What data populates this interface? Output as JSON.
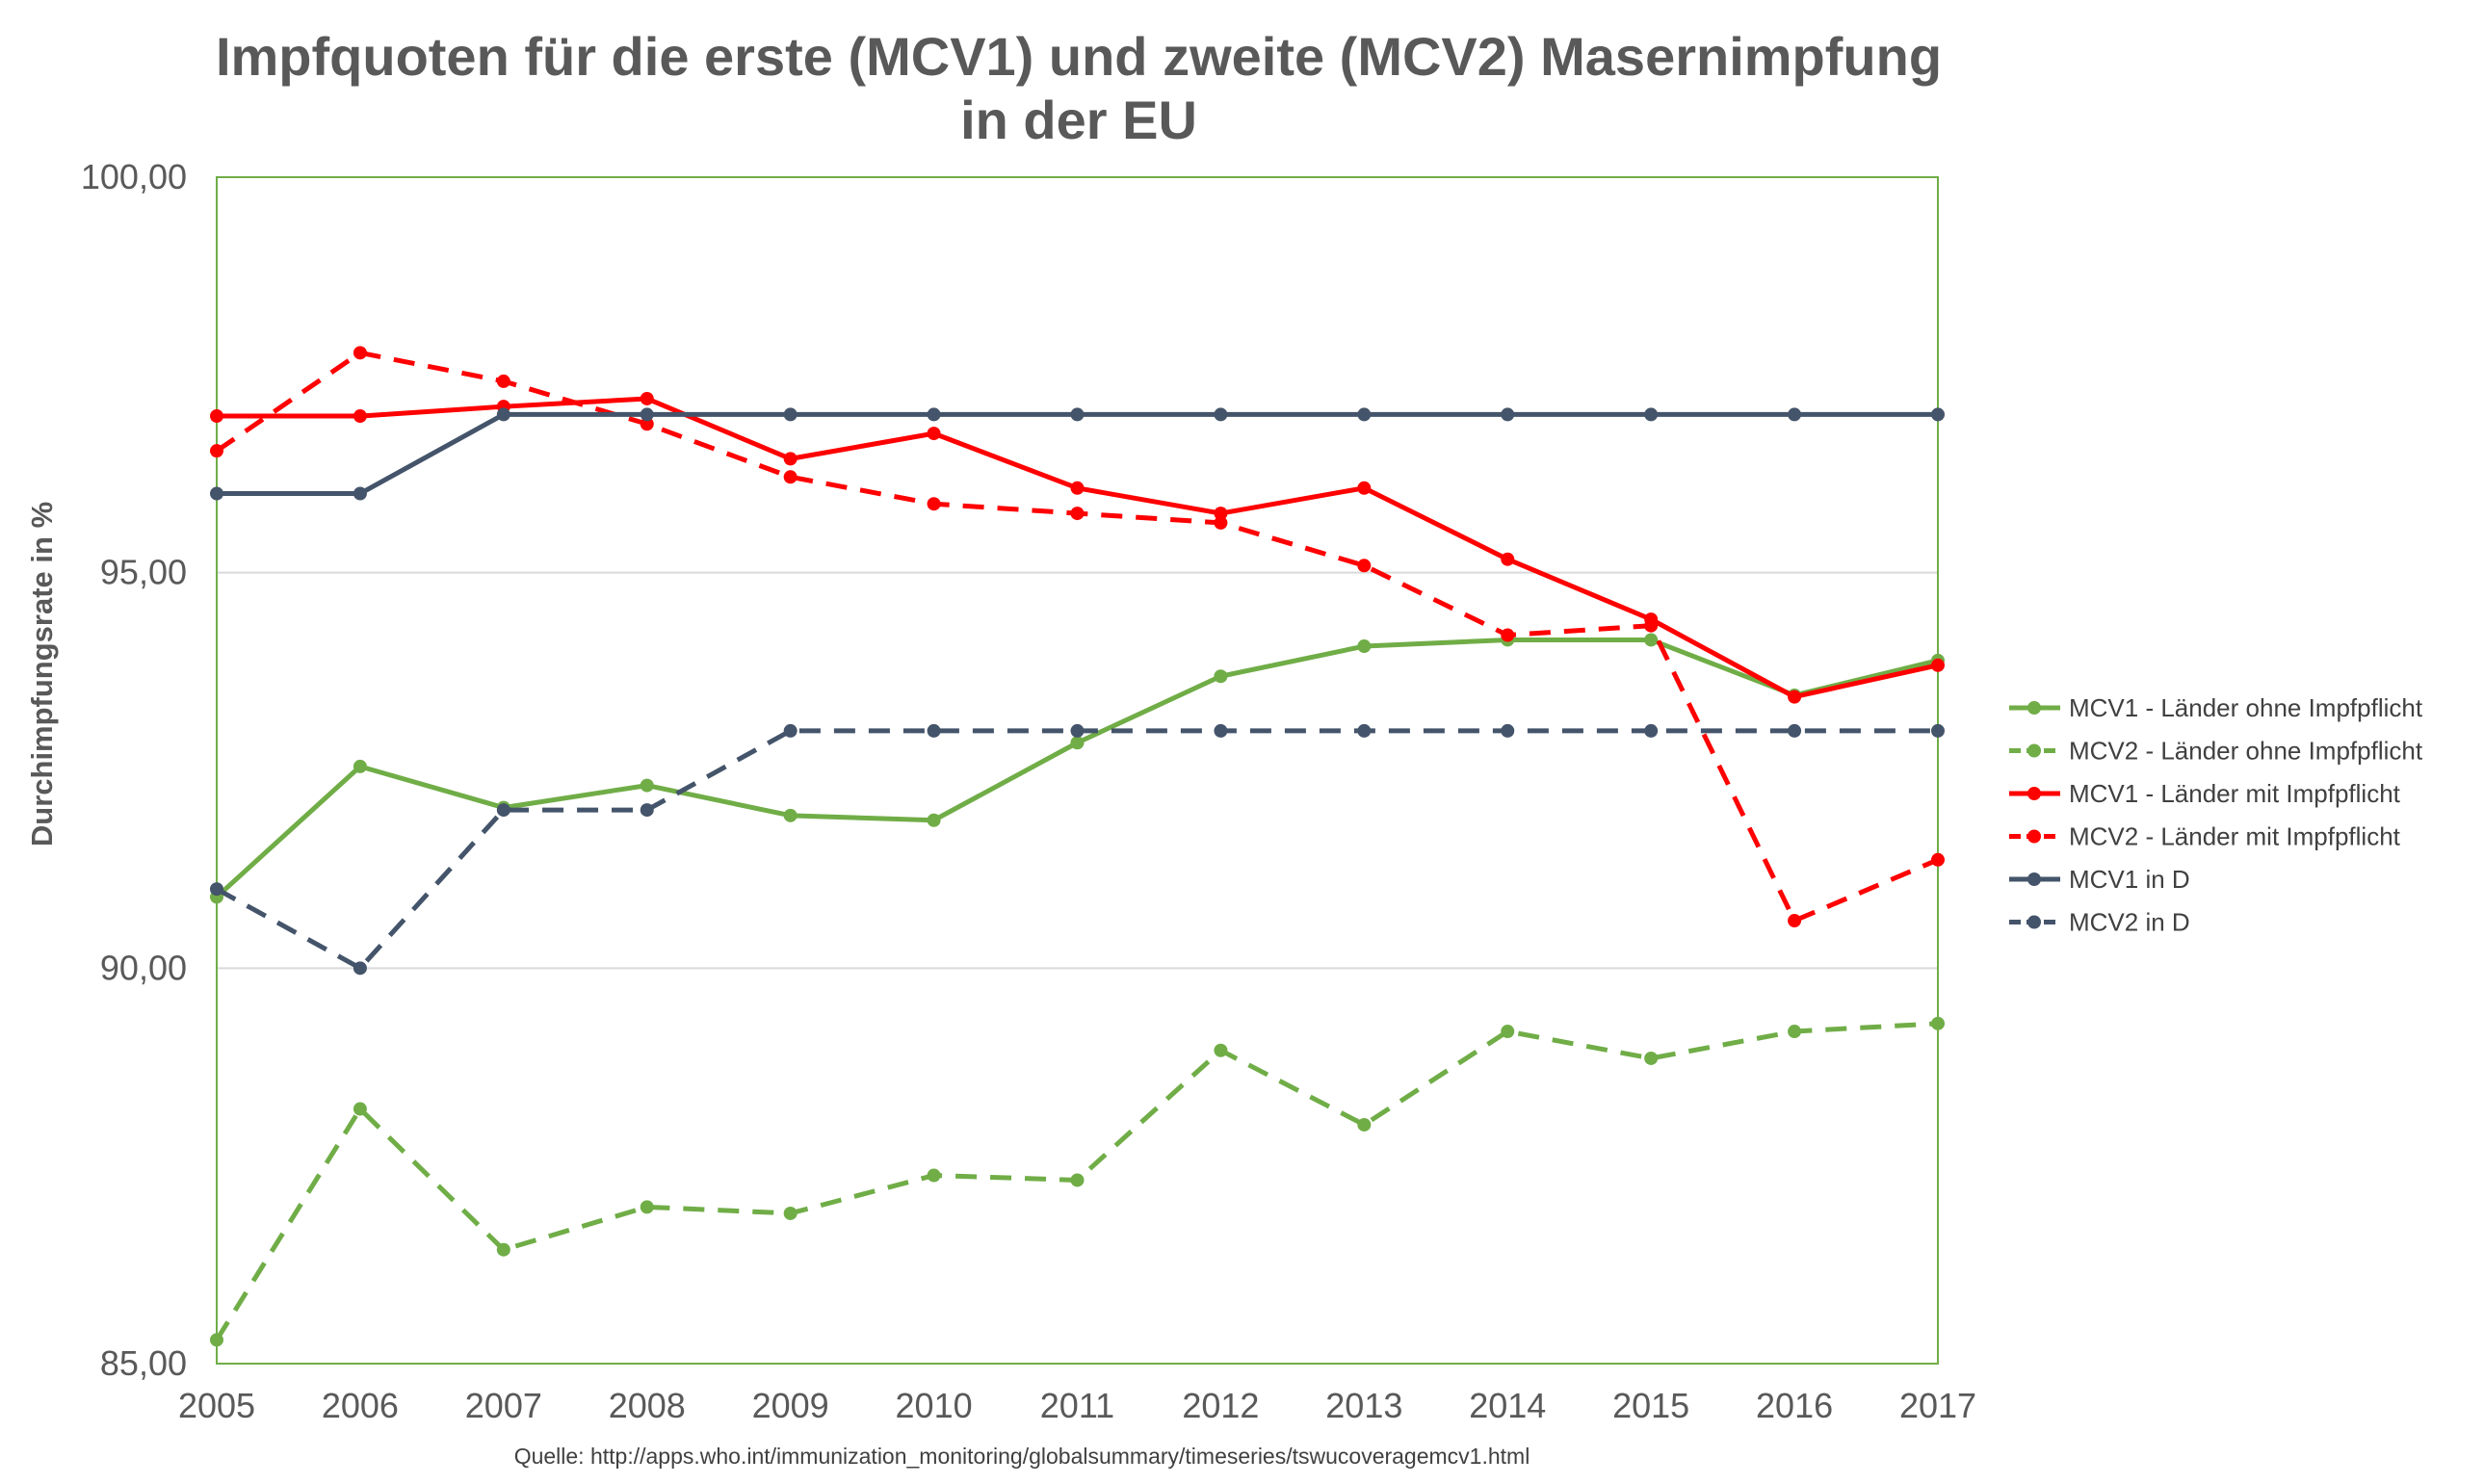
{
  "chart_data": {
    "type": "line",
    "title": [
      "Impfquoten für die erste (MCV1) und zweite (MCV2) Masernimpfung",
      "in der EU"
    ],
    "xlabel": "",
    "ylabel": "Durchimpfungsrate in %",
    "ylim": [
      85,
      100
    ],
    "yticks": [
      85,
      90,
      95,
      100
    ],
    "ytick_labels": [
      "85,00",
      "90,00",
      "95,00",
      "100,00"
    ],
    "x": [
      2005,
      2006,
      2007,
      2008,
      2009,
      2010,
      2011,
      2012,
      2013,
      2014,
      2015,
      2016,
      2017
    ],
    "xtick_labels": [
      "2005",
      "2006",
      "2007",
      "2008",
      "2009",
      "2010",
      "2011",
      "2012",
      "2013",
      "2014",
      "2015",
      "2016",
      "2017"
    ],
    "grid": "horizontal",
    "legend_position": "right",
    "series": [
      {
        "name": "MCV1 - Länder ohne Impfpflicht",
        "color": "#70AD47",
        "dashed": false,
        "values": [
          90.9,
          92.55,
          92.03,
          92.31,
          91.93,
          91.87,
          92.85,
          93.69,
          94.07,
          94.15,
          94.15,
          93.45,
          93.89
        ]
      },
      {
        "name": "MCV2 - Länder ohne Impfpflicht",
        "color": "#70AD47",
        "dashed": true,
        "values": [
          85.3,
          88.22,
          86.44,
          86.98,
          86.9,
          87.38,
          87.32,
          88.96,
          88.02,
          89.2,
          88.86,
          89.2,
          89.3
        ]
      },
      {
        "name": "MCV1 - Länder mit Impfpflicht",
        "color": "#FF0000",
        "dashed": false,
        "values": [
          96.98,
          96.98,
          97.1,
          97.2,
          96.44,
          96.76,
          96.07,
          95.75,
          96.07,
          95.17,
          94.41,
          93.43,
          93.83
        ]
      },
      {
        "name": "MCV2 - Länder mit Impfpflicht",
        "color": "#FF0000",
        "dashed": true,
        "values": [
          96.54,
          97.78,
          97.42,
          96.88,
          96.21,
          95.87,
          95.75,
          95.63,
          95.09,
          94.21,
          94.33,
          90.6,
          91.37
        ]
      },
      {
        "name": "MCV1 in D",
        "color": "#44546A",
        "dashed": false,
        "values": [
          96,
          96,
          97,
          97,
          97,
          97,
          97,
          97,
          97,
          97,
          97,
          97,
          97
        ]
      },
      {
        "name": "MCV2 in D",
        "color": "#44546A",
        "dashed": true,
        "values": [
          91,
          90,
          92,
          92,
          93,
          93,
          93,
          93,
          93,
          93,
          93,
          93,
          93
        ]
      }
    ],
    "plot_border_color": "#70AD47",
    "source": "Quelle: http://apps.who.int/immunization_monitoring/globalsummary/timeseries/tswucoveragemcv1.html"
  }
}
